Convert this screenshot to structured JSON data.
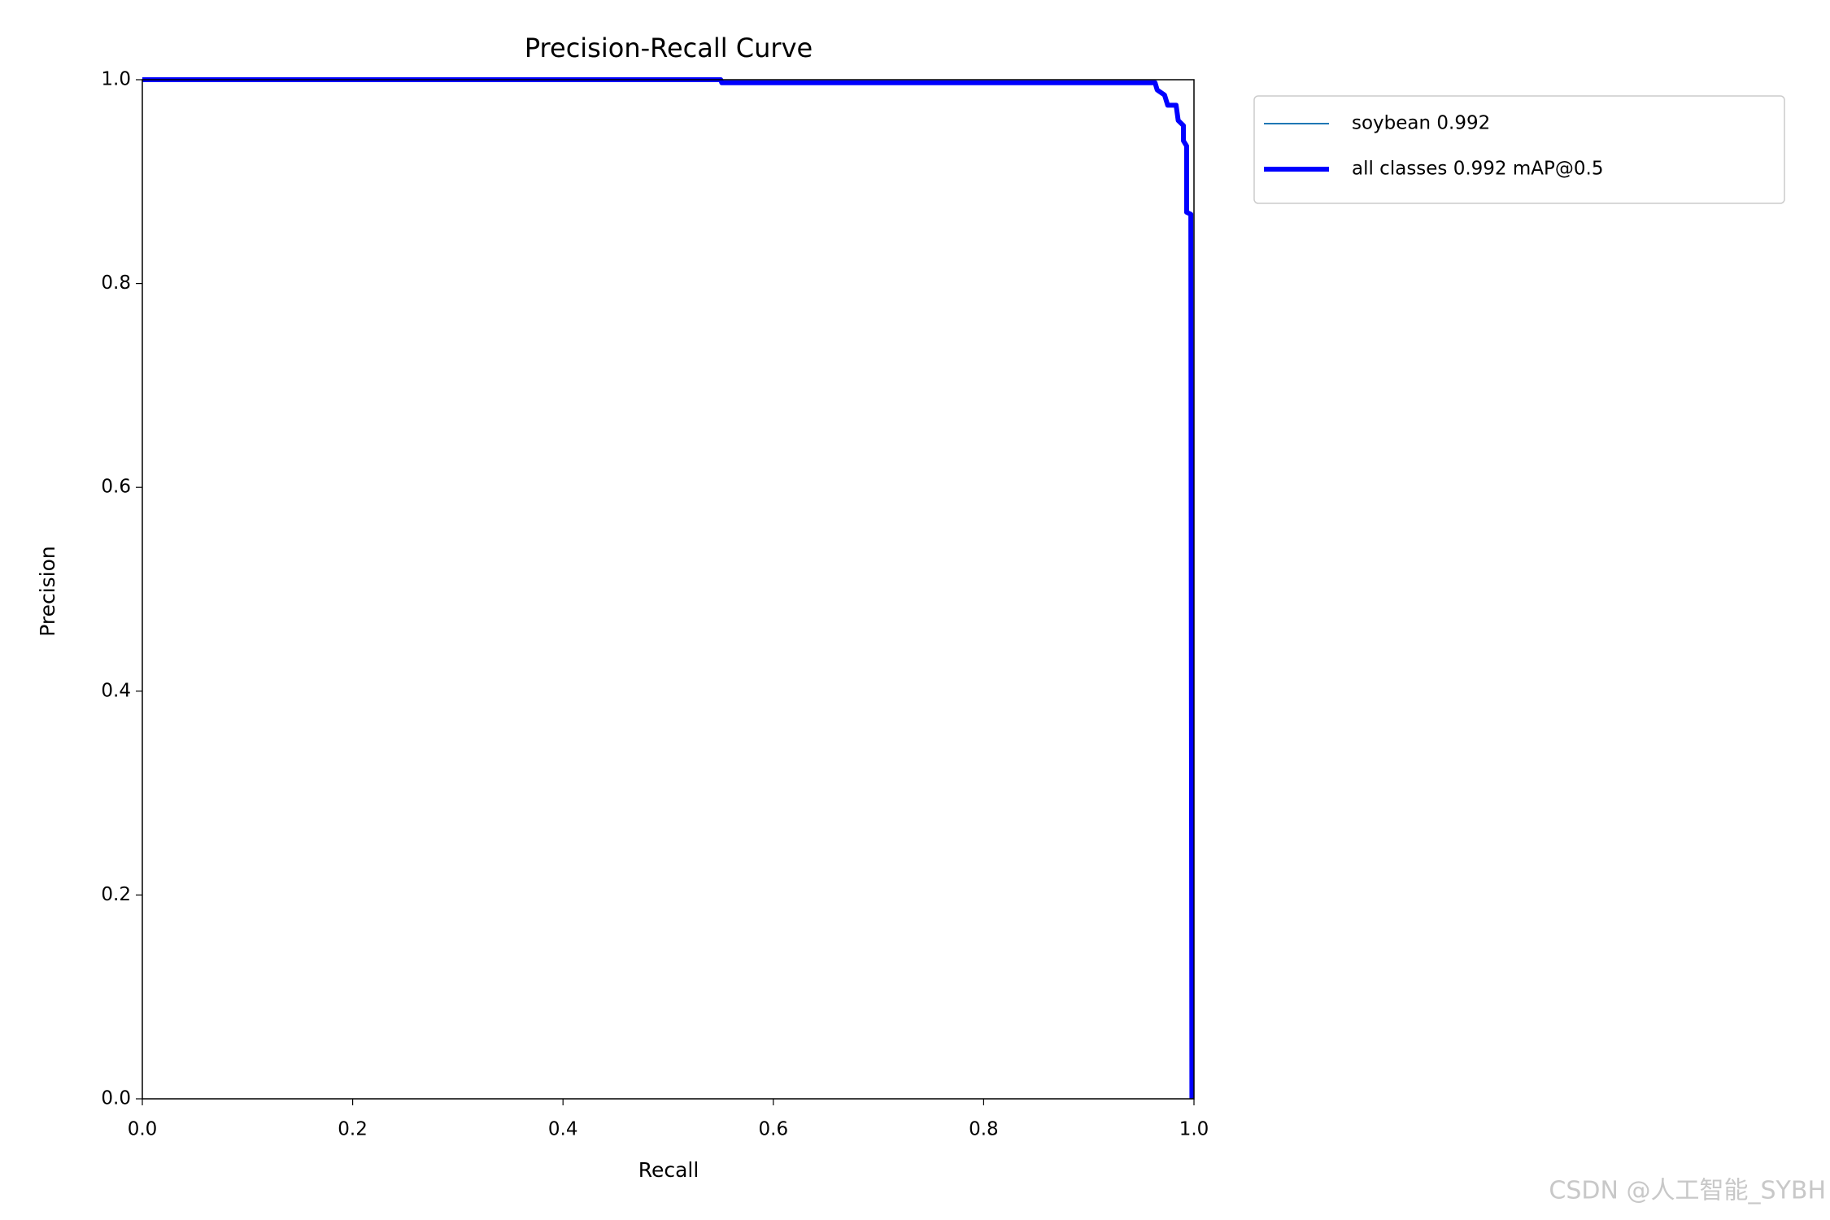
{
  "chart_data": {
    "type": "line",
    "title": "Precision-Recall Curve",
    "xlabel": "Recall",
    "ylabel": "Precision",
    "x": [
      0,
      0.55,
      0.551,
      0.963,
      0.965,
      0.972,
      0.975,
      0.983,
      0.985,
      0.99,
      0.99,
      0.993,
      0.993,
      0.997,
      0.998
    ],
    "series": [
      {
        "name": "soybean 0.992",
        "color": "#1f77b4",
        "width": 2,
        "values": [
          1,
          1,
          0.997,
          0.997,
          0.99,
          0.985,
          0.975,
          0.975,
          0.96,
          0.955,
          0.94,
          0.935,
          0.87,
          0.868,
          0
        ]
      },
      {
        "name": "all classes 0.992 mAP@0.5",
        "color": "#0000ff",
        "width": 6,
        "values": [
          1,
          1,
          0.997,
          0.997,
          0.99,
          0.985,
          0.975,
          0.975,
          0.96,
          0.955,
          0.94,
          0.935,
          0.87,
          0.868,
          0
        ]
      }
    ],
    "xlim": [
      0,
      1
    ],
    "ylim": [
      0,
      1
    ],
    "xticks": [
      {
        "value": 0,
        "label": "0.0"
      },
      0.2,
      0.4,
      0.6,
      0.8,
      {
        "value": 1,
        "label": "1.0"
      }
    ],
    "yticks": [
      {
        "value": 0,
        "label": "0.0"
      },
      0.2,
      0.4,
      0.6,
      0.8,
      {
        "value": 1,
        "label": "1.0"
      }
    ],
    "grid": false,
    "legend": "outside-right",
    "watermark": "CSDN @人工智能_SYBH"
  }
}
